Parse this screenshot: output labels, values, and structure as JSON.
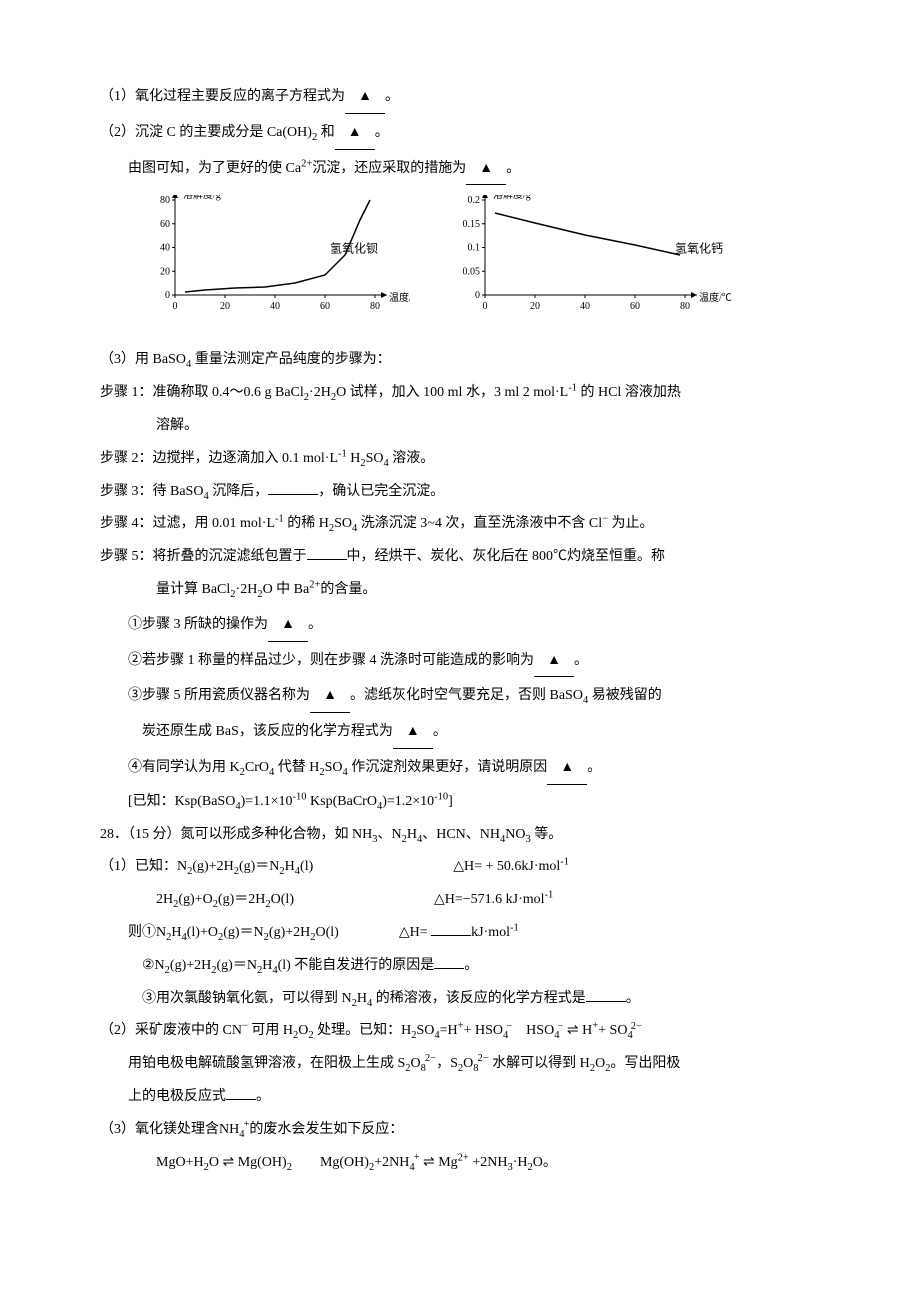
{
  "q1": {
    "text": "（1）氧化过程主要反应的离子方程式为",
    "blank": "▲",
    "tail": "。"
  },
  "q2": {
    "line1_a": "（2）沉淀 C 的主要成分是 Ca(OH)",
    "line1_sub": "2",
    "line1_b": " 和",
    "blank": "▲",
    "line1_tail": "。",
    "line2_a": "由图可知，为了更好的使 Ca",
    "line2_sup": "2+",
    "line2_b": "沉淀，还应采取的措施为",
    "line2_tail": "。"
  },
  "chart1": {
    "ylabel": "溶解度/g",
    "xlabel": "温度/℃",
    "substance": "氢氧化钡",
    "yticks": [
      0,
      20,
      40,
      60,
      80
    ],
    "xticks": [
      0,
      20,
      40,
      60,
      80
    ],
    "curve": [
      [
        10,
        97
      ],
      [
        30,
        95
      ],
      [
        60,
        93
      ],
      [
        90,
        92
      ],
      [
        120,
        88
      ],
      [
        150,
        80
      ],
      [
        170,
        60
      ],
      [
        185,
        25
      ],
      [
        195,
        5
      ]
    ],
    "axis_color": "#000",
    "text_color": "#000",
    "font_size": 10
  },
  "chart2": {
    "ylabel": "溶解度/g",
    "xlabel": "温度/℃",
    "substance": "氢氧化钙",
    "yticks": [
      0,
      0.05,
      0.1,
      0.15,
      0.2
    ],
    "xticks": [
      0,
      20,
      40,
      60,
      80
    ],
    "curve": [
      [
        10,
        18
      ],
      [
        50,
        28
      ],
      [
        100,
        40
      ],
      [
        150,
        50
      ],
      [
        195,
        60
      ]
    ],
    "axis_color": "#000",
    "text_color": "#000",
    "font_size": 10
  },
  "q3": {
    "header": "（3）用 BaSO",
    "header_sub": "4",
    "header_tail": " 重量法测定产品纯度的步骤为：",
    "step1_a": "步骤 1：准确称取 0.4～0.6 g BaCl",
    "step1_b": "·2H",
    "step1_c": "O 试样，加入 100 ml  水，3 ml 2 mol·L",
    "step1_d": "  的 HCl 溶液加热",
    "step1_e": "溶解。",
    "step2_a": "步骤 2：边搅拌，边逐滴加入 0.1 mol·L",
    "step2_b": " H",
    "step2_c": "SO",
    "step2_d": " 溶液。",
    "step3_a": "步骤 3：待 BaSO",
    "step3_b": " 沉降后，",
    "step3_c": "，确认已完全沉淀。",
    "step4_a": "步骤 4：过滤，用 0.01 mol·L",
    "step4_b": " 的稀 H",
    "step4_c": "SO",
    "step4_d": " 洗涤沉淀 3~4 次，直至洗涤液中不含 Cl",
    "step4_e": " 为止。",
    "step5_a": "步骤 5：将折叠的沉淀滤纸包置于",
    "step5_b": "中，经烘干、炭化、灰化后在 800℃灼烧至恒重。称",
    "step5_c": "量计算 BaCl",
    "step5_d": "·2H",
    "step5_e": "O 中 Ba",
    "step5_f": "的含量。",
    "sub1": "①步骤 3 所缺的操作为",
    "sub1_tail": "。",
    "sub2": "②若步骤 1 称量的样品过少，则在步骤 4 洗涤时可能造成的影响为",
    "sub2_tail": "。",
    "sub3_a": "③步骤 5 所用瓷质仪器名称为",
    "sub3_b": "。滤纸灰化时空气要充足，否则 BaSO",
    "sub3_c": " 易被残留的",
    "sub3_d": "炭还原生成 BaS，该反应的化学方程式为",
    "sub3_tail": "。",
    "sub4_a": "④有同学认为用 K",
    "sub4_b": "CrO",
    "sub4_c": " 代替 H",
    "sub4_d": "SO",
    "sub4_e": " 作沉淀剂效果更好，请说明原因",
    "sub4_tail": "。",
    "ksp": "[已知：Ksp(BaSO",
    "ksp_b": ")=1.1×10",
    "ksp_c": "    Ksp(BaCrO",
    "ksp_d": ")=1.2×10",
    "ksp_e": "]",
    "blank": "▲"
  },
  "q28": {
    "header_a": "28．（15 分）氮可以形成多种化合物，如 NH",
    "header_b": "、N",
    "header_c": "H",
    "header_d": "、HCN、NH",
    "header_e": "NO",
    "header_f": " 等。",
    "p1_a": "（1）已知：N",
    "p1_b": "(g)+2H",
    "p1_c": "(g)＝N",
    "p1_d": "H",
    "p1_e": "(l)",
    "p1_dh": "△H= + 50.6kJ·mol",
    "p2_a": "2H",
    "p2_b": "(g)+O",
    "p2_c": "(g)＝2H",
    "p2_d": "O(l)",
    "p2_dh": "△H=−571.6 kJ·mol",
    "p3_a": "则①N",
    "p3_b": "H",
    "p3_c": "(l)+O",
    "p3_d": "(g)＝N",
    "p3_e": "(g)+2H",
    "p3_f": "O(l)",
    "p3_dh_a": "△H= ",
    "p3_dh_b": "kJ·mol",
    "p4_a": "②N",
    "p4_b": "(g)+2H",
    "p4_c": "(g)＝N",
    "p4_d": "H",
    "p4_e": "(l)  不能自发进行的原因是",
    "p4_tail": "。",
    "p5_a": "③用次氯酸钠氧化氨，可以得到 N",
    "p5_b": "H",
    "p5_c": " 的稀溶液，该反应的化学方程式是",
    "p5_tail": "。",
    "p6_a": "（2）采矿废液中的 CN",
    "p6_b": "  可用 H",
    "p6_c": "O",
    "p6_d": " 处理。已知：H",
    "p6_e": "SO",
    "p6_f": "=H",
    "p6_g": "+ HSO",
    "p6_h": "HSO",
    "p6_i": "H",
    "p6_j": "+ SO",
    "p7_a": "用铂电极电解硫酸氢钾溶液，在阳极上生成 S",
    "p7_b": "O",
    "p7_c": "，S",
    "p7_d": "O",
    "p7_e": " 水解可以得到 H",
    "p7_f": "O",
    "p7_g": "。写出阳极",
    "p7_h": "上的电极反应式",
    "p7_tail": "。",
    "p8_a": "（3）氧化镁处理含",
    "p8_b": "的废水会发生如下反应：",
    "p9_a": "MgO+H",
    "p9_b": "O",
    "p9_c": "Mg(OH)",
    "p9_d": "Mg(OH)",
    "p9_e": "+2NH",
    "p9_f": "Mg",
    "p9_g": " +2NH",
    "p9_h": "·H",
    "p9_i": "O。",
    "eqarrow": "⇌"
  }
}
